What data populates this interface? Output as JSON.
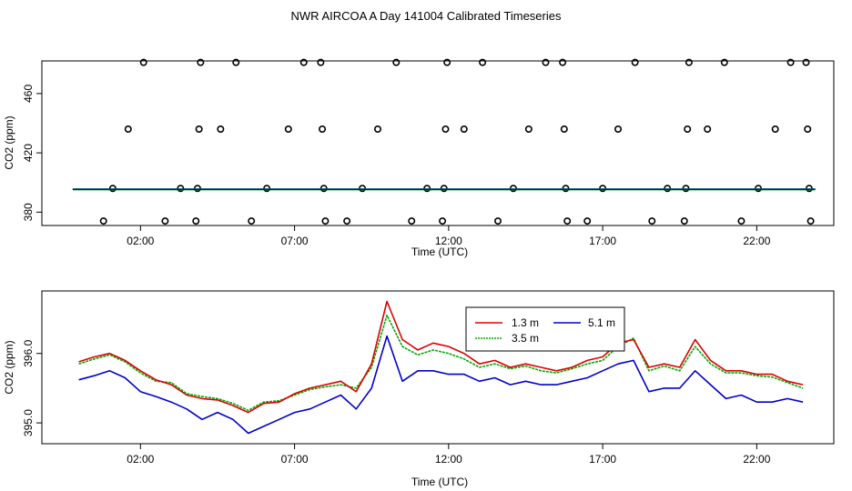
{
  "title": "NWR AIRCOA A  Day 141004  Calibrated Timeseries",
  "chart_data": [
    {
      "type": "scatter",
      "xlabel": "Time (UTC)",
      "ylabel": "CO2 (ppm)",
      "xlim": [
        -1.2,
        24.5
      ],
      "ylim": [
        371,
        482
      ],
      "xticks": [
        2,
        7,
        12,
        17,
        22
      ],
      "xtick_labels": [
        "02:00",
        "07:00",
        "12:00",
        "17:00",
        "22:00"
      ],
      "yticks": [
        380,
        420,
        460
      ],
      "ytick_labels": [
        "380",
        "420",
        "460"
      ],
      "line_colors": [
        "#00aa00",
        "#0000cc"
      ],
      "marker_color": "#000000",
      "line_value": 395.4,
      "points": [
        {
          "x": 0.8,
          "y": 374
        },
        {
          "x": 1.1,
          "y": 396
        },
        {
          "x": 1.6,
          "y": 436
        },
        {
          "x": 2.1,
          "y": 481
        },
        {
          "x": 2.8,
          "y": 374
        },
        {
          "x": 3.3,
          "y": 396
        },
        {
          "x": 3.8,
          "y": 374
        },
        {
          "x": 3.85,
          "y": 396
        },
        {
          "x": 3.9,
          "y": 436
        },
        {
          "x": 3.95,
          "y": 481
        },
        {
          "x": 4.6,
          "y": 436
        },
        {
          "x": 5.1,
          "y": 481
        },
        {
          "x": 5.6,
          "y": 374
        },
        {
          "x": 6.1,
          "y": 396
        },
        {
          "x": 6.8,
          "y": 436
        },
        {
          "x": 7.3,
          "y": 481
        },
        {
          "x": 7.85,
          "y": 481
        },
        {
          "x": 7.9,
          "y": 436
        },
        {
          "x": 7.95,
          "y": 396
        },
        {
          "x": 8.0,
          "y": 374
        },
        {
          "x": 8.7,
          "y": 374
        },
        {
          "x": 9.2,
          "y": 396
        },
        {
          "x": 9.7,
          "y": 436
        },
        {
          "x": 10.3,
          "y": 481
        },
        {
          "x": 10.8,
          "y": 374
        },
        {
          "x": 11.3,
          "y": 396
        },
        {
          "x": 11.8,
          "y": 374
        },
        {
          "x": 11.85,
          "y": 396
        },
        {
          "x": 11.9,
          "y": 436
        },
        {
          "x": 11.95,
          "y": 481
        },
        {
          "x": 12.5,
          "y": 436
        },
        {
          "x": 13.1,
          "y": 481
        },
        {
          "x": 13.6,
          "y": 374
        },
        {
          "x": 14.1,
          "y": 396
        },
        {
          "x": 14.6,
          "y": 436
        },
        {
          "x": 15.15,
          "y": 481
        },
        {
          "x": 15.7,
          "y": 481
        },
        {
          "x": 15.75,
          "y": 436
        },
        {
          "x": 15.8,
          "y": 396
        },
        {
          "x": 15.85,
          "y": 374
        },
        {
          "x": 16.5,
          "y": 374
        },
        {
          "x": 17.0,
          "y": 396
        },
        {
          "x": 17.5,
          "y": 436
        },
        {
          "x": 18.05,
          "y": 481
        },
        {
          "x": 18.6,
          "y": 374
        },
        {
          "x": 19.1,
          "y": 396
        },
        {
          "x": 19.65,
          "y": 374
        },
        {
          "x": 19.7,
          "y": 396
        },
        {
          "x": 19.75,
          "y": 436
        },
        {
          "x": 19.8,
          "y": 481
        },
        {
          "x": 20.4,
          "y": 436
        },
        {
          "x": 20.95,
          "y": 481
        },
        {
          "x": 21.5,
          "y": 374
        },
        {
          "x": 22.05,
          "y": 396
        },
        {
          "x": 22.6,
          "y": 436
        },
        {
          "x": 23.1,
          "y": 481
        },
        {
          "x": 23.6,
          "y": 481
        },
        {
          "x": 23.65,
          "y": 436
        },
        {
          "x": 23.7,
          "y": 396
        },
        {
          "x": 23.75,
          "y": 374
        }
      ]
    },
    {
      "type": "line",
      "xlabel": "Time (UTC)",
      "ylabel": "CO2 (ppm)",
      "xlim": [
        -1.2,
        24.5
      ],
      "ylim": [
        394.7,
        396.9
      ],
      "xticks": [
        2,
        7,
        12,
        17,
        22
      ],
      "xtick_labels": [
        "02:00",
        "07:00",
        "12:00",
        "17:00",
        "22:00"
      ],
      "yticks": [
        395.0,
        396.0
      ],
      "ytick_labels": [
        "395.0",
        "396.0"
      ],
      "legend": {
        "placement": "top-center",
        "labels": [
          "1.3 m",
          "5.1 m",
          "3.5 m"
        ]
      },
      "x": [
        0.0,
        0.5,
        1.0,
        1.5,
        2.0,
        2.5,
        3.0,
        3.5,
        4.0,
        4.5,
        5.0,
        5.5,
        6.0,
        6.5,
        7.0,
        7.5,
        8.0,
        8.5,
        9.0,
        9.5,
        10.0,
        10.5,
        11.0,
        11.5,
        12.0,
        12.5,
        13.0,
        13.5,
        14.0,
        14.5,
        15.0,
        15.5,
        16.0,
        16.5,
        17.0,
        17.5,
        18.0,
        18.5,
        19.0,
        19.5,
        20.0,
        20.5,
        21.0,
        21.5,
        22.0,
        22.5,
        23.0,
        23.5
      ],
      "series": [
        {
          "name": "1.3 m",
          "color": "#dd0000",
          "values": [
            395.88,
            395.95,
            396.0,
            395.9,
            395.75,
            395.62,
            395.55,
            395.4,
            395.35,
            395.33,
            395.25,
            395.15,
            395.28,
            395.3,
            395.42,
            395.5,
            395.55,
            395.6,
            395.45,
            395.85,
            396.75,
            396.2,
            396.05,
            396.15,
            396.1,
            396.0,
            395.85,
            395.9,
            395.8,
            395.85,
            395.8,
            395.75,
            395.8,
            395.9,
            395.95,
            396.15,
            396.2,
            395.8,
            395.85,
            395.8,
            396.2,
            395.9,
            395.75,
            395.75,
            395.7,
            395.7,
            395.6,
            395.55
          ]
        },
        {
          "name": "5.1 m",
          "color": "#0000cc",
          "values": [
            395.62,
            395.68,
            395.75,
            395.65,
            395.45,
            395.38,
            395.3,
            395.2,
            395.05,
            395.15,
            395.05,
            394.85,
            394.95,
            395.05,
            395.15,
            395.2,
            395.3,
            395.4,
            395.2,
            395.5,
            396.25,
            395.6,
            395.75,
            395.75,
            395.7,
            395.7,
            395.6,
            395.65,
            395.55,
            395.6,
            395.55,
            395.55,
            395.6,
            395.65,
            395.75,
            395.85,
            395.9,
            395.45,
            395.5,
            395.5,
            395.75,
            395.55,
            395.35,
            395.4,
            395.3,
            395.3,
            395.35,
            395.3
          ]
        },
        {
          "name": "3.5 m",
          "color": "#00aa00",
          "values": [
            395.85,
            395.92,
            395.98,
            395.88,
            395.72,
            395.6,
            395.58,
            395.42,
            395.38,
            395.35,
            395.28,
            395.18,
            395.3,
            395.32,
            395.4,
            395.48,
            395.52,
            395.55,
            395.5,
            395.8,
            396.55,
            396.1,
            395.98,
            396.05,
            396.0,
            395.92,
            395.8,
            395.85,
            395.78,
            395.82,
            395.75,
            395.72,
            395.78,
            395.85,
            395.9,
            396.1,
            396.22,
            395.75,
            395.82,
            395.75,
            396.1,
            395.85,
            395.72,
            395.72,
            395.68,
            395.66,
            395.58,
            395.5
          ]
        }
      ]
    }
  ]
}
